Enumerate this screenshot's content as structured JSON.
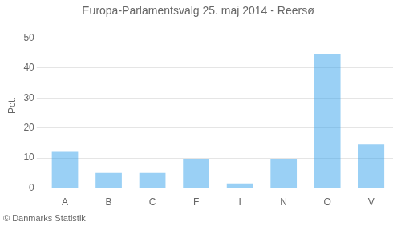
{
  "chart_data": {
    "type": "bar",
    "title": "Europa-Parlamentsvalg 25. maj 2014 - Reersø",
    "categories": [
      "A",
      "B",
      "C",
      "F",
      "I",
      "N",
      "O",
      "V"
    ],
    "values": [
      12,
      5,
      5,
      9.5,
      1.5,
      9.5,
      44.5,
      14.5
    ],
    "ylabel": "Pct.",
    "ylim": [
      0,
      55
    ],
    "yticks": [
      0,
      10,
      20,
      30,
      40,
      50
    ],
    "grid": true,
    "annotations": [
      "© Danmarks Statistik"
    ]
  }
}
